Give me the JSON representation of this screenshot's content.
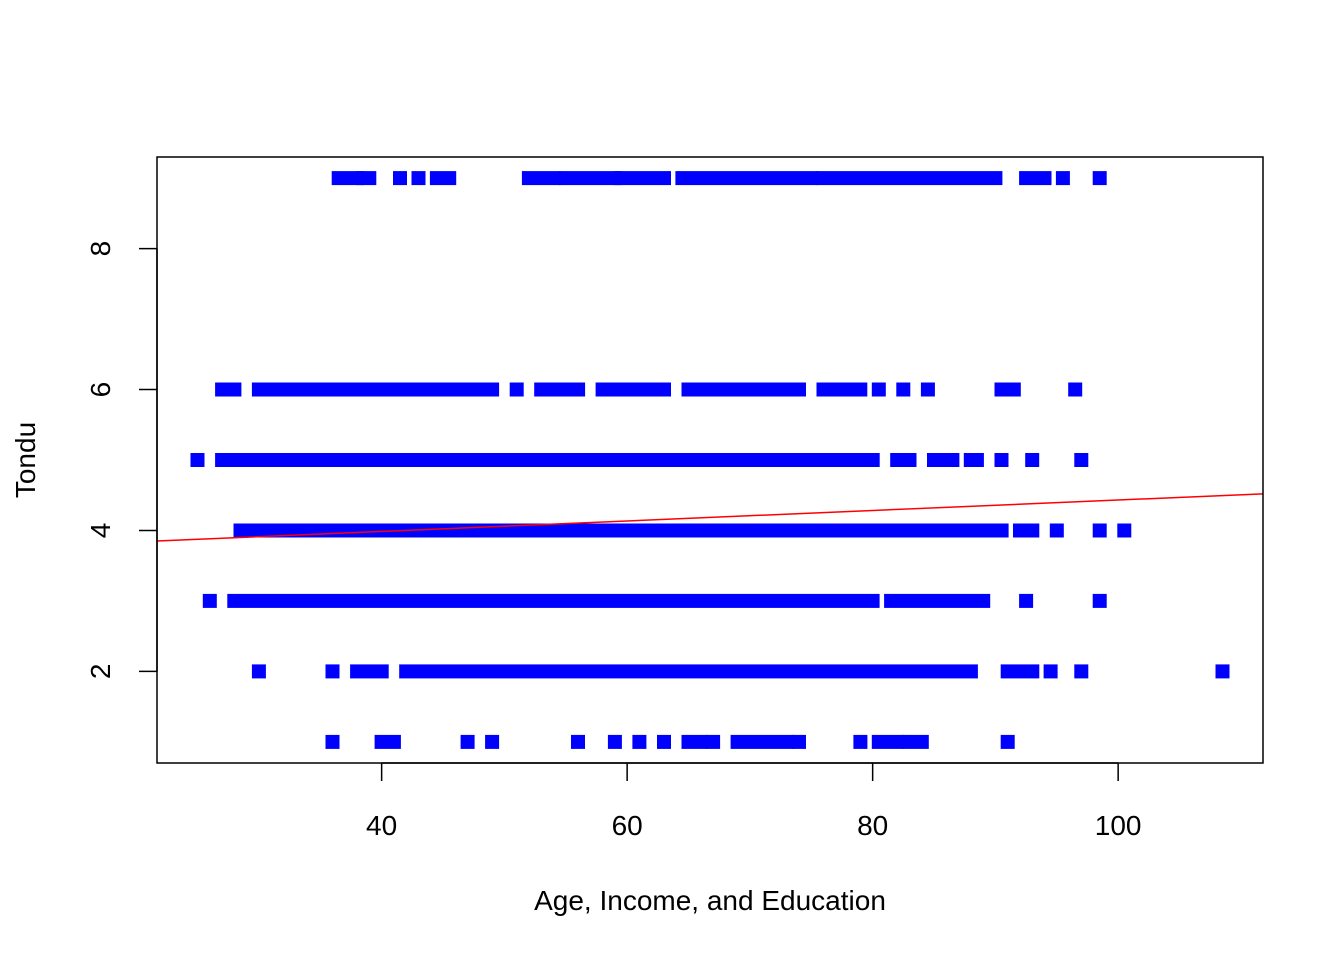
{
  "chart_data": {
    "type": "scatter",
    "title": "",
    "xlabel": "Age, Income, and Education",
    "ylabel": "Tondu",
    "xlim": [
      21.7,
      111.8
    ],
    "ylim": [
      0.7,
      9.3
    ],
    "x_ticks": [
      40,
      60,
      80,
      100
    ],
    "y_ticks": [
      2,
      4,
      6,
      8
    ],
    "x_tick_labels": [
      "40",
      "60",
      "80",
      "100"
    ],
    "y_tick_labels": [
      "2",
      "4",
      "6",
      "8"
    ],
    "grid": false,
    "legend": "none",
    "point_color": "#0000FF",
    "line_color": "#FF0000",
    "regression_line": {
      "x": [
        21.7,
        111.8
      ],
      "y": [
        3.85,
        4.52
      ]
    },
    "point_segments": [
      {
        "y": 9,
        "x_from": 36.5,
        "x_to": 38.0
      },
      {
        "y": 9,
        "x_from": 38.5,
        "x_to": 39.0
      },
      {
        "y": 9,
        "x_from": 41.5,
        "x_to": 41.5
      },
      {
        "y": 9,
        "x_from": 43.0,
        "x_to": 43.0
      },
      {
        "y": 9,
        "x_from": 44.5,
        "x_to": 45.5
      },
      {
        "y": 9,
        "x_from": 52.0,
        "x_to": 54.0
      },
      {
        "y": 9,
        "x_from": 55.0,
        "x_to": 59.0
      },
      {
        "y": 9,
        "x_from": 59.5,
        "x_to": 63.0
      },
      {
        "y": 9,
        "x_from": 64.5,
        "x_to": 75.0
      },
      {
        "y": 9,
        "x_from": 76.0,
        "x_to": 90.0
      },
      {
        "y": 9,
        "x_from": 92.5,
        "x_to": 94.0
      },
      {
        "y": 9,
        "x_from": 95.5,
        "x_to": 95.5
      },
      {
        "y": 9,
        "x_from": 98.5,
        "x_to": 98.5
      },
      {
        "y": 6,
        "x_from": 27.0,
        "x_to": 28.0
      },
      {
        "y": 6,
        "x_from": 30.0,
        "x_to": 35.0
      },
      {
        "y": 6,
        "x_from": 36.0,
        "x_to": 49.0
      },
      {
        "y": 6,
        "x_from": 51.0,
        "x_to": 51.0
      },
      {
        "y": 6,
        "x_from": 53.0,
        "x_to": 54.0
      },
      {
        "y": 6,
        "x_from": 55.0,
        "x_to": 56.0
      },
      {
        "y": 6,
        "x_from": 58.0,
        "x_to": 63.0
      },
      {
        "y": 6,
        "x_from": 65.0,
        "x_to": 74.0
      },
      {
        "y": 6,
        "x_from": 76.0,
        "x_to": 79.0
      },
      {
        "y": 6,
        "x_from": 80.5,
        "x_to": 80.5
      },
      {
        "y": 6,
        "x_from": 82.5,
        "x_to": 82.5
      },
      {
        "y": 6,
        "x_from": 84.5,
        "x_to": 84.5
      },
      {
        "y": 6,
        "x_from": 90.5,
        "x_to": 91.5
      },
      {
        "y": 6,
        "x_from": 96.5,
        "x_to": 96.5
      },
      {
        "y": 5,
        "x_from": 25.0,
        "x_to": 25.0
      },
      {
        "y": 5,
        "x_from": 27.0,
        "x_to": 80.0
      },
      {
        "y": 5,
        "x_from": 82.0,
        "x_to": 83.0
      },
      {
        "y": 5,
        "x_from": 85.0,
        "x_to": 86.5
      },
      {
        "y": 5,
        "x_from": 88.0,
        "x_to": 88.5
      },
      {
        "y": 5,
        "x_from": 90.5,
        "x_to": 90.5
      },
      {
        "y": 5,
        "x_from": 93.0,
        "x_to": 93.0
      },
      {
        "y": 5,
        "x_from": 97.0,
        "x_to": 97.0
      },
      {
        "y": 4,
        "x_from": 28.5,
        "x_to": 90.5
      },
      {
        "y": 4,
        "x_from": 92.0,
        "x_to": 93.0
      },
      {
        "y": 4,
        "x_from": 95.0,
        "x_to": 95.0
      },
      {
        "y": 4,
        "x_from": 98.5,
        "x_to": 98.5
      },
      {
        "y": 4,
        "x_from": 100.5,
        "x_to": 100.5
      },
      {
        "y": 3,
        "x_from": 26.0,
        "x_to": 26.0
      },
      {
        "y": 3,
        "x_from": 28.0,
        "x_to": 80.0
      },
      {
        "y": 3,
        "x_from": 81.5,
        "x_to": 89.0
      },
      {
        "y": 3,
        "x_from": 92.5,
        "x_to": 92.5
      },
      {
        "y": 3,
        "x_from": 98.5,
        "x_to": 98.5
      },
      {
        "y": 2,
        "x_from": 30.0,
        "x_to": 30.0
      },
      {
        "y": 2,
        "x_from": 36.0,
        "x_to": 36.0
      },
      {
        "y": 2,
        "x_from": 38.0,
        "x_to": 40.0
      },
      {
        "y": 2,
        "x_from": 42.0,
        "x_to": 88.0
      },
      {
        "y": 2,
        "x_from": 91.0,
        "x_to": 93.0
      },
      {
        "y": 2,
        "x_from": 94.5,
        "x_to": 94.5
      },
      {
        "y": 2,
        "x_from": 97.0,
        "x_to": 97.0
      },
      {
        "y": 2,
        "x_from": 108.5,
        "x_to": 108.5
      },
      {
        "y": 1,
        "x_from": 36.0,
        "x_to": 36.0
      },
      {
        "y": 1,
        "x_from": 40.0,
        "x_to": 41.0
      },
      {
        "y": 1,
        "x_from": 47.0,
        "x_to": 47.0
      },
      {
        "y": 1,
        "x_from": 49.0,
        "x_to": 49.0
      },
      {
        "y": 1,
        "x_from": 56.0,
        "x_to": 56.0
      },
      {
        "y": 1,
        "x_from": 59.0,
        "x_to": 59.0
      },
      {
        "y": 1,
        "x_from": 61.0,
        "x_to": 61.0
      },
      {
        "y": 1,
        "x_from": 63.0,
        "x_to": 63.0
      },
      {
        "y": 1,
        "x_from": 65.0,
        "x_to": 66.0
      },
      {
        "y": 1,
        "x_from": 67.0,
        "x_to": 67.0
      },
      {
        "y": 1,
        "x_from": 69.0,
        "x_to": 73.0
      },
      {
        "y": 1,
        "x_from": 74.0,
        "x_to": 74.0
      },
      {
        "y": 1,
        "x_from": 79.0,
        "x_to": 79.0
      },
      {
        "y": 1,
        "x_from": 80.5,
        "x_to": 82.0
      },
      {
        "y": 1,
        "x_from": 83.0,
        "x_to": 84.0
      },
      {
        "y": 1,
        "x_from": 91.0,
        "x_to": 91.0
      }
    ]
  }
}
